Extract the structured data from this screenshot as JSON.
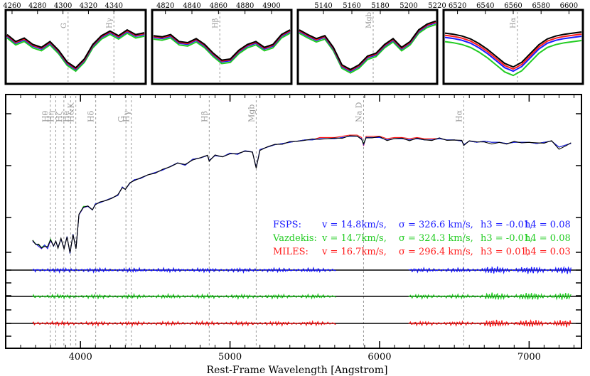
{
  "figure": {
    "xlabel": "Rest-Frame Wavelength [Angstrom]"
  },
  "colors": {
    "data": "#000000",
    "fsps": "#1a1aff",
    "vazdekis": "#22cc22",
    "miles": "#ff1a1a",
    "lines": "#999999",
    "zero": "#000000"
  },
  "chart_data": [
    {
      "panel": "main",
      "type": "line",
      "xlabel": "Rest-Frame Wavelength [Angstrom]",
      "ylabel": "",
      "xlim": [
        3500,
        7350
      ],
      "xticks": [
        4000,
        5000,
        6000,
        7000
      ],
      "grid": false,
      "spectra": {
        "x": [
          3680,
          3700,
          3720,
          3740,
          3760,
          3780,
          3800,
          3820,
          3835,
          3850,
          3870,
          3890,
          3910,
          3930,
          3950,
          3970,
          3990,
          4020,
          4050,
          4080,
          4100,
          4130,
          4170,
          4210,
          4250,
          4280,
          4300,
          4330,
          4360,
          4400,
          4450,
          4500,
          4550,
          4600,
          4650,
          4700,
          4750,
          4800,
          4850,
          4861,
          4900,
          4950,
          5000,
          5050,
          5100,
          5150,
          5175,
          5200,
          5250,
          5300,
          5350,
          5400,
          5450,
          5500,
          5550,
          5600,
          5650,
          5700,
          5750,
          5800,
          5850,
          5880,
          5893,
          5910,
          5950,
          6000,
          6050,
          6100,
          6150,
          6200,
          6250,
          6300,
          6350,
          6400,
          6450,
          6500,
          6550,
          6563,
          6600,
          6650,
          6700,
          6750,
          6800,
          6850,
          6900,
          6950,
          7000,
          7050,
          7100,
          7150,
          7200,
          7250,
          7280
        ],
        "series": [
          {
            "name": "FSPS",
            "y": [
              0.12,
              0.1,
              0.08,
              0.06,
              0.09,
              0.06,
              0.13,
              0.08,
              0.12,
              0.07,
              0.14,
              0.06,
              0.16,
              0.02,
              0.18,
              0.06,
              0.34,
              0.4,
              0.41,
              0.38,
              0.43,
              0.44,
              0.46,
              0.48,
              0.5,
              0.57,
              0.55,
              0.6,
              0.63,
              0.64,
              0.67,
              0.69,
              0.71,
              0.74,
              0.77,
              0.75,
              0.8,
              0.81,
              0.83,
              0.79,
              0.83,
              0.82,
              0.85,
              0.84,
              0.87,
              0.86,
              0.73,
              0.88,
              0.9,
              0.92,
              0.93,
              0.94,
              0.95,
              0.96,
              0.96,
              0.97,
              0.97,
              0.97,
              0.98,
              0.99,
              0.99,
              0.97,
              0.92,
              0.98,
              0.98,
              0.98,
              0.96,
              0.97,
              0.97,
              0.96,
              0.97,
              0.96,
              0.96,
              0.97,
              0.96,
              0.96,
              0.95,
              0.92,
              0.95,
              0.94,
              0.95,
              0.94,
              0.94,
              0.93,
              0.94,
              0.94,
              0.94,
              0.93,
              0.94,
              0.95,
              0.9,
              0.92,
              0.93
            ]
          },
          {
            "name": "Vazdekis",
            "y": [
              0.13,
              0.1,
              0.09,
              0.07,
              0.09,
              0.07,
              0.14,
              0.08,
              0.12,
              0.07,
              0.14,
              0.06,
              0.16,
              0.02,
              0.18,
              0.06,
              0.34,
              0.41,
              0.41,
              0.38,
              0.43,
              0.44,
              0.46,
              0.48,
              0.5,
              0.57,
              0.55,
              0.6,
              0.63,
              0.64,
              0.67,
              0.69,
              0.71,
              0.74,
              0.77,
              0.75,
              0.8,
              0.81,
              0.83,
              0.79,
              0.83,
              0.82,
              0.85,
              0.84,
              0.87,
              0.86,
              0.73,
              0.88,
              0.9,
              0.92,
              0.93,
              0.94,
              0.95,
              0.96,
              0.96,
              0.97,
              0.97,
              0.97,
              0.98,
              0.99,
              0.99,
              0.97,
              0.93,
              0.98,
              0.98,
              0.98,
              0.96,
              0.97,
              0.97,
              0.96,
              0.97,
              0.96,
              0.96,
              0.97,
              0.96,
              0.96,
              0.95,
              0.92,
              0.95,
              0.94,
              0.95,
              0.94,
              0.94,
              0.93,
              0.94,
              0.94,
              0.94,
              0.93,
              0.94,
              0.95,
              0.9,
              0.92,
              0.93
            ]
          },
          {
            "name": "MILES",
            "y": [
              0.12,
              0.1,
              0.08,
              0.06,
              0.09,
              0.06,
              0.13,
              0.08,
              0.12,
              0.07,
              0.14,
              0.06,
              0.16,
              0.02,
              0.18,
              0.06,
              0.34,
              0.4,
              0.41,
              0.38,
              0.43,
              0.44,
              0.46,
              0.48,
              0.5,
              0.57,
              0.55,
              0.6,
              0.63,
              0.64,
              0.67,
              0.69,
              0.71,
              0.74,
              0.77,
              0.75,
              0.8,
              0.81,
              0.83,
              0.79,
              0.83,
              0.82,
              0.85,
              0.84,
              0.87,
              0.86,
              0.73,
              0.88,
              0.9,
              0.92,
              0.93,
              0.94,
              0.95,
              0.96,
              0.96,
              0.98,
              0.98,
              0.98,
              0.99,
              1.0,
              1.0,
              0.98,
              0.91,
              0.99,
              0.99,
              0.99,
              0.97,
              0.98,
              0.98,
              0.97,
              0.98,
              0.97,
              0.97,
              0.97,
              0.96,
              0.96,
              0.95,
              0.92,
              0.95,
              0.94,
              0.95,
              0.94,
              0.94,
              0.93,
              0.94,
              0.94,
              0.94,
              0.93,
              0.94,
              0.95,
              0.9,
              0.92,
              0.93
            ]
          },
          {
            "name": "",
            "y": [
              0.13,
              0.1,
              0.09,
              0.07,
              0.08,
              0.07,
              0.14,
              0.08,
              0.12,
              0.07,
              0.14,
              0.06,
              0.16,
              0.02,
              0.18,
              0.06,
              0.34,
              0.41,
              0.41,
              0.38,
              0.43,
              0.44,
              0.46,
              0.48,
              0.5,
              0.57,
              0.55,
              0.6,
              0.63,
              0.64,
              0.67,
              0.69,
              0.71,
              0.74,
              0.77,
              0.75,
              0.8,
              0.81,
              0.83,
              0.79,
              0.83,
              0.82,
              0.85,
              0.84,
              0.87,
              0.86,
              0.72,
              0.88,
              0.9,
              0.92,
              0.93,
              0.94,
              0.95,
              0.96,
              0.96,
              0.97,
              0.97,
              0.97,
              0.98,
              0.99,
              0.99,
              0.97,
              0.92,
              0.98,
              0.98,
              0.98,
              0.96,
              0.97,
              0.97,
              0.96,
              0.97,
              0.96,
              0.96,
              0.97,
              0.96,
              0.96,
              0.95,
              0.92,
              0.95,
              0.94,
              0.95,
              0.92,
              0.94,
              0.93,
              0.94,
              0.94,
              0.94,
              0.93,
              0.94,
              0.95,
              0.88,
              0.92,
              0.93
            ]
          }
        ]
      },
      "line_markers": [
        {
          "label": "Hθ",
          "x": 3798
        },
        {
          "label": "Hη",
          "x": 3835
        },
        {
          "label": "Hζ",
          "x": 3889
        },
        {
          "label": "He",
          "x": 3934
        },
        {
          "label": "H&K",
          "x": 3969
        },
        {
          "label": "Hδ",
          "x": 4102
        },
        {
          "label": "G",
          "x": 4304
        },
        {
          "label": "Hγ",
          "x": 4340
        },
        {
          "label": "Hβ",
          "x": 4861
        },
        {
          "label": "Mgb",
          "x": 5175
        },
        {
          "label": "Na D",
          "x": 5893
        },
        {
          "label": "Hα",
          "x": 6563
        }
      ],
      "fit_labels": [
        {
          "template": "FSPS:",
          "v": "v = 14.8km/s,",
          "sigma": "σ = 326.6 km/s,",
          "h3": "h3 = -0.01,",
          "h4": "h4 = 0.08"
        },
        {
          "template": "Vazdekis:",
          "v": "v = 14.7km/s,",
          "sigma": "σ = 324.3 km/s,",
          "h3": "h3 = -0.01,",
          "h4": "h4 = 0.08"
        },
        {
          "template": "MILES:",
          "v": "v = 16.7km/s,",
          "sigma": "σ = 296.4 km/s,",
          "h3": "h3 = 0.01,",
          "h4": "h4 = 0.03"
        }
      ],
      "residual_masked_ranges": [
        [
          5710,
          6190
        ]
      ]
    },
    {
      "panel": "inset-G-Hgamma",
      "type": "line",
      "xlim": [
        4255,
        4365
      ],
      "xticks": [
        4260,
        4280,
        4300,
        4320,
        4340
      ],
      "line_markers": [
        {
          "label": "G",
          "x": 4304
        },
        {
          "label": "Hγ",
          "x": 4340
        }
      ]
    },
    {
      "panel": "inset-Hbeta",
      "type": "line",
      "xlim": [
        4810,
        4915
      ],
      "xticks": [
        4820,
        4840,
        4860,
        4880,
        4900
      ],
      "line_markers": [
        {
          "label": "Hβ",
          "x": 4861
        }
      ]
    },
    {
      "panel": "inset-Mgb",
      "type": "line",
      "xlim": [
        5122,
        5220
      ],
      "xticks": [
        5140,
        5160,
        5180,
        5200,
        5220
      ],
      "line_markers": [
        {
          "label": "Mgb",
          "x": 5175
        }
      ]
    },
    {
      "panel": "inset-Halpha",
      "type": "line",
      "xlim": [
        6510,
        6610
      ],
      "xticks": [
        6520,
        6540,
        6560,
        6580,
        6600
      ],
      "line_markers": [
        {
          "label": "Hα",
          "x": 6563
        }
      ]
    }
  ]
}
